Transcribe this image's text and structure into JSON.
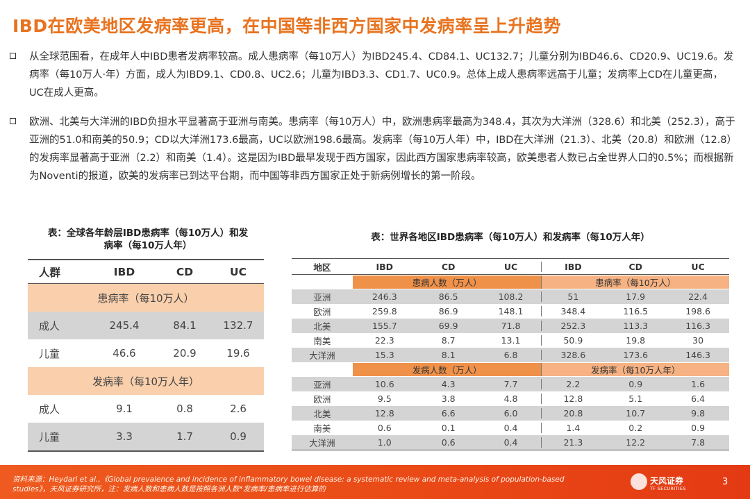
{
  "title": "IBD在欧美地区发病率更高，在中国等非西方国家中发病率呈上升趋势",
  "bullets": [
    "从全球范围看，在成年人中IBD患者发病率较高。成人患病率（每10万人）为IBD245.4、CD84.1、UC132.7；儿童分别为IBD46.6、CD20.9、UC19.6。发病率（每10万人·年）方面，成人为IBD9.1、CD0.8、UC2.6；儿童为IBD3.3、CD1.7、UC0.9。总体上成人患病率远高于儿童；发病率上CD在儿童更高，UC在成人更高。",
    "欧洲、北美与大洋洲的IBD负担水平显著高于亚洲与南美。患病率（每10万人）中，欧洲患病率最高为348.4，其次为大洋洲（328.6）和北美（252.3），高于亚洲的51.0和南美的50.9；CD以大洋洲173.6最高，UC以欧洲198.6最高。发病率（每10万人年）中，IBD在大洋洲（21.3）、北美（20.8）和欧洲（12.8）的发病率显著高于亚洲（2.2）和南美（1.4）。这是因为IBD最早发现于西方国家，因此西方国家患病率较高，欧美患者人数已占全世界人口的0.5%；而根据新为Noventi的报道，欧美的发病率已到达平台期，而中国等非西方国家正处于新病例增长的第一阶段。"
  ],
  "left_table": {
    "caption": "表：全球各年龄层IBD患病率（每10万人）和发病率（每10万人年）",
    "headers": [
      "人群",
      "IBD",
      "CD",
      "UC"
    ],
    "section1": "患病率（每10万人）",
    "section2": "发病率（每10万人年）",
    "rows1": [
      [
        "成人",
        "245.4",
        "84.1",
        "132.7"
      ],
      [
        "儿童",
        "46.6",
        "20.9",
        "19.6"
      ]
    ],
    "rows2": [
      [
        "成人",
        "9.1",
        "0.8",
        "2.6"
      ],
      [
        "儿童",
        "3.3",
        "1.7",
        "0.9"
      ]
    ]
  },
  "right_table": {
    "caption": "表：世界各地区IBD患病率（每10万人）和发病率（每10万人年）",
    "headers": [
      "地区",
      "IBD",
      "CD",
      "UC",
      "IBD",
      "CD",
      "UC"
    ],
    "sub1_left": "患病人数（万人）",
    "sub1_right": "患病率（每10万人）",
    "sub2_left": "发病人数（万人）",
    "sub2_right": "发病率（每10万人年）",
    "block1": [
      [
        "亚洲",
        "246.3",
        "86.5",
        "108.2",
        "51",
        "17.9",
        "22.4"
      ],
      [
        "欧洲",
        "259.8",
        "86.9",
        "148.1",
        "348.4",
        "116.5",
        "198.6"
      ],
      [
        "北美",
        "155.7",
        "69.9",
        "71.8",
        "252.3",
        "113.3",
        "116.3"
      ],
      [
        "南美",
        "22.3",
        "8.7",
        "13.1",
        "50.9",
        "19.8",
        "30"
      ],
      [
        "大洋洲",
        "15.3",
        "8.1",
        "6.8",
        "328.6",
        "173.6",
        "146.3"
      ]
    ],
    "block2": [
      [
        "亚洲",
        "10.6",
        "4.3",
        "7.7",
        "2.2",
        "0.9",
        "1.6"
      ],
      [
        "欧洲",
        "9.5",
        "3.8",
        "4.8",
        "12.8",
        "5.1",
        "6.4"
      ],
      [
        "北美",
        "12.8",
        "6.6",
        "6.0",
        "20.8",
        "10.7",
        "9.8"
      ],
      [
        "南美",
        "0.6",
        "0.1",
        "0.4",
        "1.4",
        "0.2",
        "0.9"
      ],
      [
        "大洋洲",
        "1.0",
        "0.6",
        "0.4",
        "21.3",
        "12.2",
        "7.8"
      ]
    ]
  },
  "footer": {
    "source": "资料来源：Heydari et al.,《Global prevalence and incidence of inflammatory bowel disease: a systematic review and meta-analysis of population-based studies》，天风证券研究所，注：发病人数和患病人数是按照各洲人数*发病率/患病率进行估算的",
    "brand": "天风证券",
    "brand_sub": "TF SECURITIES",
    "page": "3",
    "colors": {
      "accent": "#e8731f",
      "footer": "#ea4a16",
      "section": "#f9cfac",
      "row_gray": "#d4d4d4"
    }
  }
}
